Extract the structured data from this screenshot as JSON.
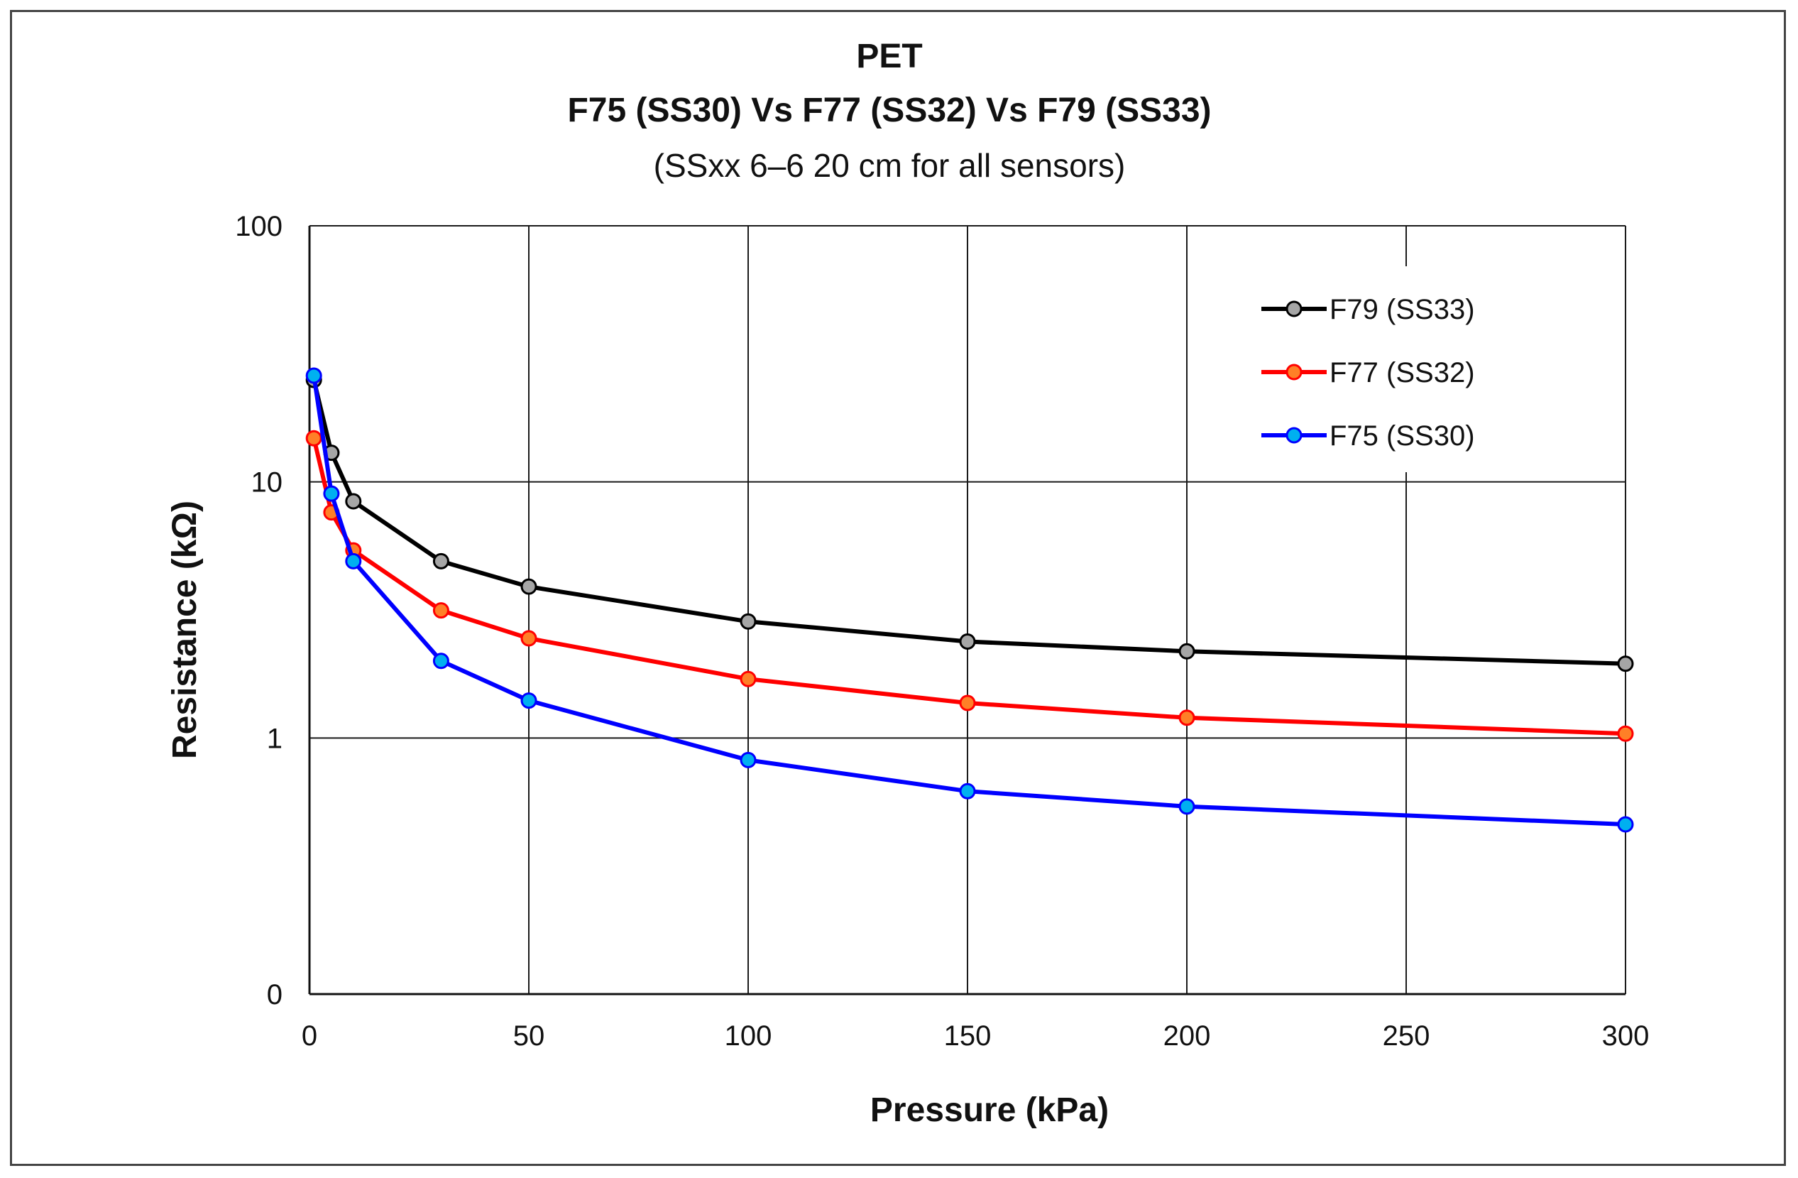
{
  "chart_data": {
    "type": "line",
    "title": "PET",
    "subtitle": "F75 (SS30) Vs F77 (SS32) Vs F79 (SS33)",
    "note": "(SSxx 6–6 20 cm for all sensors)",
    "xlabel": "Pressure (kPa)",
    "ylabel": "Resistance (kΩ)",
    "xlim": [
      0,
      300
    ],
    "ylim_log": [
      0.1,
      100
    ],
    "y_scale": "log",
    "grid": true,
    "legend_position": "top-right",
    "x_ticks": [
      0,
      50,
      100,
      150,
      200,
      250,
      300
    ],
    "x_tick_labels": [
      "0",
      "50",
      "100",
      "150",
      "200",
      "250",
      "300"
    ],
    "y_ticks": [
      0.1,
      1,
      10,
      100
    ],
    "y_tick_labels": [
      "0",
      "1",
      "10",
      "100"
    ],
    "series": [
      {
        "name": "F79 (SS33)",
        "line_color": "#000000",
        "marker_color": "#a6a6a6",
        "x": [
          1,
          5,
          10,
          30,
          50,
          100,
          150,
          200,
          300
        ],
        "values": [
          25,
          13,
          8.4,
          4.9,
          3.9,
          2.85,
          2.38,
          2.18,
          1.95
        ]
      },
      {
        "name": "F77 (SS32)",
        "line_color": "#ff0000",
        "marker_color": "#ff7f27",
        "x": [
          1,
          5,
          10,
          30,
          50,
          100,
          150,
          200,
          300
        ],
        "values": [
          14.8,
          7.6,
          5.4,
          3.15,
          2.45,
          1.7,
          1.37,
          1.2,
          1.04
        ]
      },
      {
        "name": "F75 (SS30)",
        "line_color": "#0000ff",
        "marker_color": "#00b0f0",
        "x": [
          1,
          5,
          10,
          30,
          50,
          100,
          150,
          200,
          300
        ],
        "values": [
          26,
          9,
          4.9,
          2.0,
          1.4,
          0.82,
          0.62,
          0.54,
          0.46
        ]
      }
    ]
  }
}
